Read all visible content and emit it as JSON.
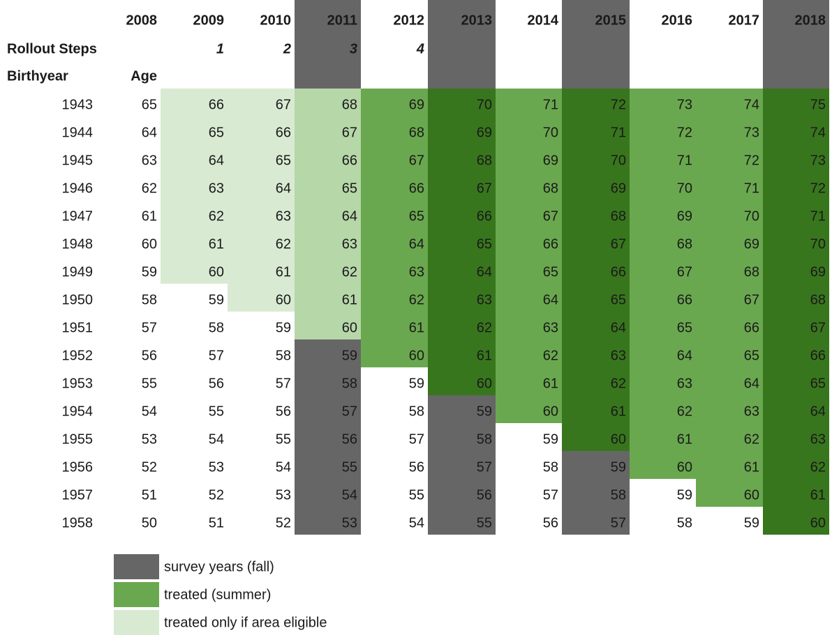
{
  "table": {
    "years": [
      "2008",
      "2009",
      "2010",
      "2011",
      "2012",
      "2013",
      "2014",
      "2015",
      "2016",
      "2017",
      "2018"
    ],
    "header_colors": [
      null,
      null,
      null,
      "#666666",
      null,
      "#666666",
      null,
      "#666666",
      null,
      null,
      "#666666"
    ],
    "rollout_label": "Rollout Steps",
    "steps": [
      "1",
      "2",
      "3",
      "4"
    ],
    "birthyear_label": "Birthyear",
    "age_label": "Age",
    "rows": [
      [
        "1943",
        "65",
        "66",
        "67",
        "68",
        "69",
        "70",
        "71",
        "72",
        "73",
        "74",
        "75"
      ],
      [
        "1944",
        "64",
        "65",
        "66",
        "67",
        "68",
        "69",
        "70",
        "71",
        "72",
        "73",
        "74"
      ],
      [
        "1945",
        "63",
        "64",
        "65",
        "66",
        "67",
        "68",
        "69",
        "70",
        "71",
        "72",
        "73"
      ],
      [
        "1946",
        "62",
        "63",
        "64",
        "65",
        "66",
        "67",
        "68",
        "69",
        "70",
        "71",
        "72"
      ],
      [
        "1947",
        "61",
        "62",
        "63",
        "64",
        "65",
        "66",
        "67",
        "68",
        "69",
        "70",
        "71"
      ],
      [
        "1948",
        "60",
        "61",
        "62",
        "63",
        "64",
        "65",
        "66",
        "67",
        "68",
        "69",
        "70"
      ],
      [
        "1949",
        "59",
        "60",
        "61",
        "62",
        "63",
        "64",
        "65",
        "66",
        "67",
        "68",
        "69"
      ],
      [
        "1950",
        "58",
        "59",
        "60",
        "61",
        "62",
        "63",
        "64",
        "65",
        "66",
        "67",
        "68"
      ],
      [
        "1951",
        "57",
        "58",
        "59",
        "60",
        "61",
        "62",
        "63",
        "64",
        "65",
        "66",
        "67"
      ],
      [
        "1952",
        "56",
        "57",
        "58",
        "59",
        "60",
        "61",
        "62",
        "63",
        "64",
        "65",
        "66"
      ],
      [
        "1953",
        "55",
        "56",
        "57",
        "58",
        "59",
        "60",
        "61",
        "62",
        "63",
        "64",
        "65"
      ],
      [
        "1954",
        "54",
        "55",
        "56",
        "57",
        "58",
        "59",
        "60",
        "61",
        "62",
        "63",
        "64"
      ],
      [
        "1955",
        "53",
        "54",
        "55",
        "56",
        "57",
        "58",
        "59",
        "60",
        "61",
        "62",
        "63"
      ],
      [
        "1956",
        "52",
        "53",
        "54",
        "55",
        "56",
        "57",
        "58",
        "59",
        "60",
        "61",
        "62"
      ],
      [
        "1957",
        "51",
        "52",
        "53",
        "54",
        "55",
        "56",
        "57",
        "58",
        "59",
        "60",
        "61"
      ],
      [
        "1958",
        "50",
        "51",
        "52",
        "53",
        "54",
        "55",
        "56",
        "57",
        "58",
        "59",
        "60"
      ]
    ],
    "cell_colors": [
      [
        null,
        null,
        "#d9ead3",
        "#d9ead3",
        "#b6d7a8",
        "#6aa84f",
        "#38761d",
        "#6aa84f",
        "#38761d",
        "#6aa84f",
        "#6aa84f",
        "#38761d"
      ],
      [
        null,
        null,
        "#d9ead3",
        "#d9ead3",
        "#b6d7a8",
        "#6aa84f",
        "#38761d",
        "#6aa84f",
        "#38761d",
        "#6aa84f",
        "#6aa84f",
        "#38761d"
      ],
      [
        null,
        null,
        "#d9ead3",
        "#d9ead3",
        "#b6d7a8",
        "#6aa84f",
        "#38761d",
        "#6aa84f",
        "#38761d",
        "#6aa84f",
        "#6aa84f",
        "#38761d"
      ],
      [
        null,
        null,
        "#d9ead3",
        "#d9ead3",
        "#b6d7a8",
        "#6aa84f",
        "#38761d",
        "#6aa84f",
        "#38761d",
        "#6aa84f",
        "#6aa84f",
        "#38761d"
      ],
      [
        null,
        null,
        "#d9ead3",
        "#d9ead3",
        "#b6d7a8",
        "#6aa84f",
        "#38761d",
        "#6aa84f",
        "#38761d",
        "#6aa84f",
        "#6aa84f",
        "#38761d"
      ],
      [
        null,
        null,
        "#d9ead3",
        "#d9ead3",
        "#b6d7a8",
        "#6aa84f",
        "#38761d",
        "#6aa84f",
        "#38761d",
        "#6aa84f",
        "#6aa84f",
        "#38761d"
      ],
      [
        null,
        null,
        "#d9ead3",
        "#d9ead3",
        "#b6d7a8",
        "#6aa84f",
        "#38761d",
        "#6aa84f",
        "#38761d",
        "#6aa84f",
        "#6aa84f",
        "#38761d"
      ],
      [
        null,
        null,
        null,
        "#d9ead3",
        "#b6d7a8",
        "#6aa84f",
        "#38761d",
        "#6aa84f",
        "#38761d",
        "#6aa84f",
        "#6aa84f",
        "#38761d"
      ],
      [
        null,
        null,
        null,
        null,
        "#b6d7a8",
        "#6aa84f",
        "#38761d",
        "#6aa84f",
        "#38761d",
        "#6aa84f",
        "#6aa84f",
        "#38761d"
      ],
      [
        null,
        null,
        null,
        null,
        "#666666",
        "#6aa84f",
        "#38761d",
        "#6aa84f",
        "#38761d",
        "#6aa84f",
        "#6aa84f",
        "#38761d"
      ],
      [
        null,
        null,
        null,
        null,
        "#666666",
        null,
        "#38761d",
        "#6aa84f",
        "#38761d",
        "#6aa84f",
        "#6aa84f",
        "#38761d"
      ],
      [
        null,
        null,
        null,
        null,
        "#666666",
        null,
        "#666666",
        "#6aa84f",
        "#38761d",
        "#6aa84f",
        "#6aa84f",
        "#38761d"
      ],
      [
        null,
        null,
        null,
        null,
        "#666666",
        null,
        "#666666",
        null,
        "#38761d",
        "#6aa84f",
        "#6aa84f",
        "#38761d"
      ],
      [
        null,
        null,
        null,
        null,
        "#666666",
        null,
        "#666666",
        null,
        "#666666",
        "#6aa84f",
        "#6aa84f",
        "#38761d"
      ],
      [
        null,
        null,
        null,
        null,
        "#666666",
        null,
        "#666666",
        null,
        "#666666",
        null,
        "#6aa84f",
        "#38761d"
      ],
      [
        null,
        null,
        null,
        null,
        "#666666",
        null,
        "#666666",
        null,
        "#666666",
        null,
        null,
        "#38761d"
      ]
    ],
    "legend": [
      {
        "label": "survey years (fall)",
        "color": "#666666"
      },
      {
        "label": "treated (summer)",
        "color": "#6aa84f"
      },
      {
        "label": "treated only if area eligible",
        "color": "#d9ead3"
      }
    ]
  }
}
